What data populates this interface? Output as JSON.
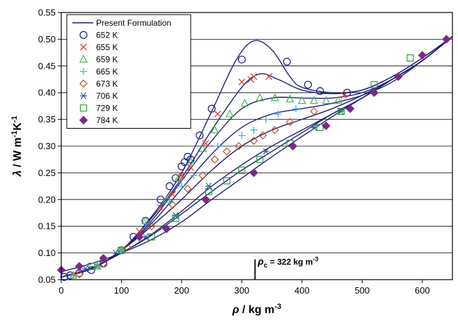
{
  "chart_data": {
    "type": "scatter",
    "title": "",
    "xlabel": {
      "symbol": "ρ",
      "unit": " / kg m",
      "exp": "-3"
    },
    "ylabel": {
      "symbol": "λ",
      "unit": " / W m",
      "exp1": "-1",
      "unit2": "K",
      "exp2": "-1"
    },
    "xlim": [
      0,
      650
    ],
    "ylim": [
      0.05,
      0.55
    ],
    "xticks": [
      0,
      100,
      200,
      300,
      400,
      500,
      600
    ],
    "yticks": [
      0.05,
      0.1,
      0.15,
      0.2,
      0.25,
      0.3,
      0.35,
      0.4,
      0.45,
      0.5,
      0.55
    ],
    "grid": "horizontal",
    "legend_position": "top-left",
    "line_label": "Present Formulation",
    "line_color": "#1f1f7a",
    "annotation": {
      "x": 322,
      "symbol": "ρ",
      "sub": "c",
      "text": " = 322 kg m",
      "exp": "-3"
    },
    "series": [
      {
        "name": "652 K",
        "marker": "circle",
        "color": "#1a1a8c",
        "x": [
          5,
          15,
          30,
          50,
          70,
          100,
          120,
          140,
          165,
          180,
          190,
          200,
          205,
          210,
          215,
          230,
          250,
          300,
          375,
          410,
          430,
          475
        ],
        "y": [
          0.055,
          0.058,
          0.062,
          0.068,
          0.08,
          0.105,
          0.13,
          0.16,
          0.2,
          0.225,
          0.24,
          0.262,
          0.27,
          0.28,
          0.275,
          0.32,
          0.37,
          0.462,
          0.458,
          0.415,
          0.403,
          0.4
        ],
        "curve_x": [
          0,
          50,
          100,
          150,
          200,
          250,
          290,
          320,
          350,
          380,
          400,
          450,
          500,
          550,
          600,
          650
        ],
        "curve_y": [
          0.055,
          0.07,
          0.105,
          0.168,
          0.25,
          0.365,
          0.46,
          0.497,
          0.48,
          0.43,
          0.41,
          0.4,
          0.405,
          0.43,
          0.465,
          0.505
        ]
      },
      {
        "name": "655 K",
        "marker": "x",
        "color": "#e8392b",
        "x": [
          20,
          60,
          100,
          130,
          165,
          185,
          200,
          215,
          240,
          260,
          300,
          315,
          320,
          345,
          470
        ],
        "y": [
          0.06,
          0.075,
          0.105,
          0.14,
          0.185,
          0.21,
          0.245,
          0.26,
          0.305,
          0.36,
          0.42,
          0.425,
          0.43,
          0.43,
          0.395
        ],
        "curve_x": [
          0,
          50,
          100,
          150,
          200,
          250,
          300,
          330,
          360,
          400,
          450,
          500,
          550,
          600,
          650
        ],
        "curve_y": [
          0.055,
          0.07,
          0.105,
          0.165,
          0.24,
          0.33,
          0.41,
          0.435,
          0.425,
          0.405,
          0.398,
          0.405,
          0.43,
          0.465,
          0.505
        ]
      },
      {
        "name": "659 K",
        "marker": "triangle",
        "color": "#45b84a",
        "x": [
          20,
          60,
          100,
          140,
          175,
          195,
          215,
          235,
          255,
          280,
          305,
          330,
          355,
          380,
          400,
          420,
          440,
          460
        ],
        "y": [
          0.058,
          0.075,
          0.105,
          0.16,
          0.2,
          0.24,
          0.27,
          0.295,
          0.33,
          0.36,
          0.38,
          0.39,
          0.39,
          0.388,
          0.385,
          0.385,
          0.385,
          0.385
        ],
        "curve_x": [
          0,
          50,
          100,
          150,
          200,
          250,
          300,
          350,
          400,
          450,
          500,
          550,
          600,
          650
        ],
        "curve_y": [
          0.055,
          0.07,
          0.105,
          0.16,
          0.235,
          0.31,
          0.37,
          0.39,
          0.39,
          0.39,
          0.4,
          0.425,
          0.46,
          0.505
        ]
      },
      {
        "name": "665 K",
        "marker": "plus",
        "color": "#35b6e6",
        "x": [
          20,
          60,
          100,
          140,
          180,
          200,
          220,
          260,
          300,
          320,
          340,
          360,
          390
        ],
        "y": [
          0.058,
          0.075,
          0.105,
          0.155,
          0.195,
          0.225,
          0.245,
          0.3,
          0.32,
          0.33,
          0.35,
          0.36,
          0.37
        ],
        "curve_x": [
          0,
          50,
          100,
          150,
          200,
          250,
          300,
          350,
          400,
          450,
          500,
          550,
          600,
          650
        ],
        "curve_y": [
          0.055,
          0.07,
          0.105,
          0.155,
          0.22,
          0.285,
          0.335,
          0.36,
          0.37,
          0.38,
          0.395,
          0.42,
          0.46,
          0.505
        ]
      },
      {
        "name": "673 K",
        "marker": "diamond-open",
        "color": "#c0502a",
        "x": [
          30,
          70,
          110,
          150,
          185,
          210,
          235,
          255,
          275,
          295,
          320,
          335,
          355,
          380,
          420
        ],
        "y": [
          0.06,
          0.08,
          0.11,
          0.15,
          0.19,
          0.22,
          0.245,
          0.275,
          0.29,
          0.3,
          0.31,
          0.32,
          0.33,
          0.345,
          0.365
        ],
        "curve_x": [
          0,
          50,
          100,
          150,
          200,
          250,
          300,
          350,
          400,
          450,
          500,
          550,
          600,
          650
        ],
        "curve_y": [
          0.055,
          0.07,
          0.105,
          0.15,
          0.2,
          0.255,
          0.3,
          0.33,
          0.35,
          0.37,
          0.395,
          0.425,
          0.46,
          0.505
        ]
      },
      {
        "name": "706 K",
        "marker": "asterisk",
        "color": "#2e5aa8",
        "x": [
          40,
          90,
          140,
          190,
          245,
          340,
          420,
          465
        ],
        "y": [
          0.07,
          0.1,
          0.13,
          0.17,
          0.225,
          0.29,
          0.335,
          0.365
        ],
        "curve_x": [
          0,
          50,
          100,
          150,
          200,
          250,
          300,
          350,
          400,
          450,
          500,
          550,
          600,
          650
        ],
        "curve_y": [
          0.055,
          0.072,
          0.1,
          0.135,
          0.178,
          0.225,
          0.265,
          0.3,
          0.33,
          0.36,
          0.39,
          0.425,
          0.46,
          0.505
        ]
      },
      {
        "name": "729 K",
        "marker": "square",
        "color": "#2f9a3e",
        "x": [
          50,
          100,
          150,
          190,
          245,
          275,
          300,
          330,
          380,
          430,
          465,
          520,
          580
        ],
        "y": [
          0.075,
          0.105,
          0.13,
          0.165,
          0.215,
          0.235,
          0.255,
          0.275,
          0.305,
          0.335,
          0.365,
          0.415,
          0.465
        ],
        "curve_x": [
          0,
          50,
          100,
          150,
          200,
          250,
          300,
          350,
          400,
          450,
          500,
          550,
          600,
          650
        ],
        "curve_y": [
          0.055,
          0.072,
          0.1,
          0.133,
          0.173,
          0.215,
          0.255,
          0.29,
          0.325,
          0.36,
          0.39,
          0.425,
          0.46,
          0.505
        ]
      },
      {
        "name": "784 K",
        "marker": "diamond",
        "color": "#7b2a86",
        "x": [
          0,
          30,
          70,
          130,
          175,
          240,
          320,
          385,
          440,
          480,
          520,
          560,
          600,
          640
        ],
        "y": [
          0.068,
          0.075,
          0.09,
          0.13,
          0.145,
          0.2,
          0.25,
          0.3,
          0.338,
          0.37,
          0.4,
          0.43,
          0.47,
          0.5
        ],
        "curve_x": [
          0,
          50,
          100,
          150,
          200,
          250,
          300,
          350,
          400,
          450,
          500,
          550,
          600,
          650
        ],
        "curve_y": [
          0.065,
          0.08,
          0.1,
          0.125,
          0.158,
          0.2,
          0.24,
          0.28,
          0.318,
          0.355,
          0.39,
          0.425,
          0.46,
          0.505
        ]
      }
    ]
  }
}
